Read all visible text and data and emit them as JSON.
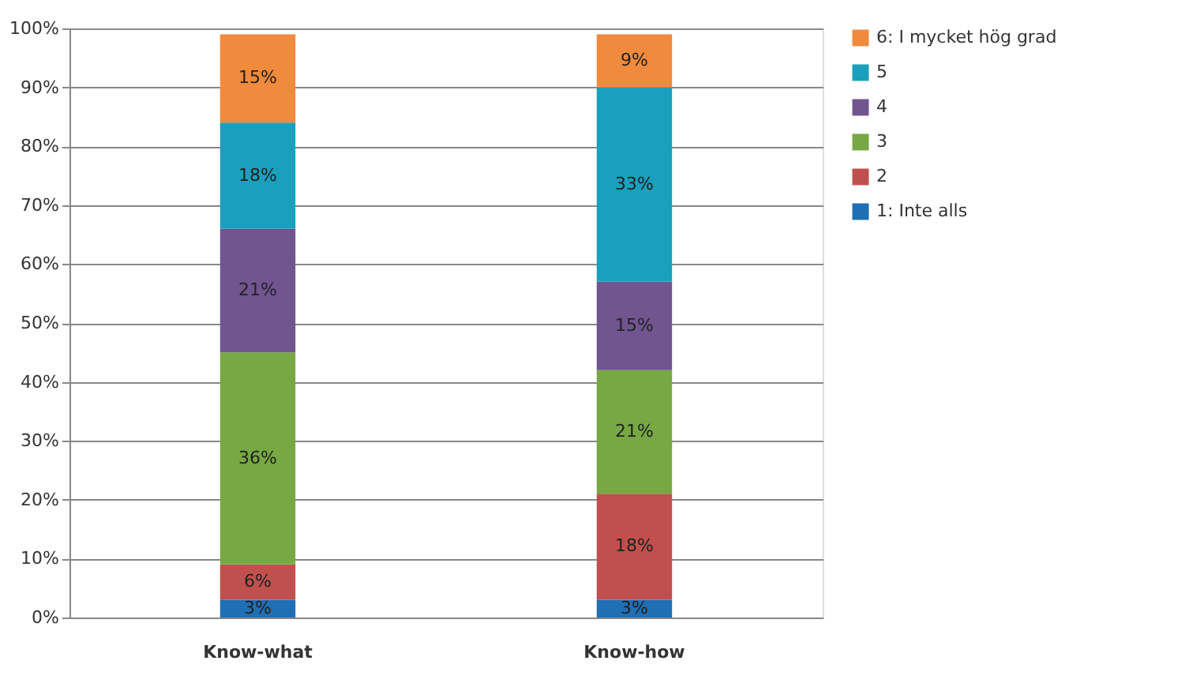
{
  "chart_data": {
    "type": "bar",
    "stacked": true,
    "categories": [
      "Know-what",
      "Know-how"
    ],
    "series": [
      {
        "name": "1: Inte alls",
        "color": "#1f6fb4",
        "values": [
          3,
          3
        ],
        "value_labels": [
          "3%",
          "3%"
        ]
      },
      {
        "name": "2",
        "color": "#c0504d",
        "values": [
          6,
          18
        ],
        "value_labels": [
          "6%",
          "18%"
        ]
      },
      {
        "name": "3",
        "color": "#77a844",
        "values": [
          36,
          21
        ],
        "value_labels": [
          "36%",
          "21%"
        ]
      },
      {
        "name": "4",
        "color": "#71558f",
        "values": [
          21,
          15
        ],
        "value_labels": [
          "21%",
          "15%"
        ]
      },
      {
        "name": "5",
        "color": "#1aa0bc",
        "values": [
          18,
          33
        ],
        "value_labels": [
          "18%",
          "33%"
        ]
      },
      {
        "name": "6: I mycket hög grad",
        "color": "#f08a3c",
        "values": [
          15,
          9
        ],
        "value_labels": [
          "15%",
          "9%"
        ]
      }
    ],
    "ylim": [
      0,
      100
    ],
    "yticks": [
      {
        "value": 0,
        "label": "0%"
      },
      {
        "value": 10,
        "label": "10%"
      },
      {
        "value": 20,
        "label": "20%"
      },
      {
        "value": 30,
        "label": "30%"
      },
      {
        "value": 40,
        "label": "40%"
      },
      {
        "value": 50,
        "label": "50%"
      },
      {
        "value": 60,
        "label": "60%"
      },
      {
        "value": 70,
        "label": "70%"
      },
      {
        "value": 80,
        "label": "80%"
      },
      {
        "value": 90,
        "label": "90%"
      },
      {
        "value": 100,
        "label": "100%"
      }
    ],
    "grid": "y",
    "legend": "right"
  }
}
